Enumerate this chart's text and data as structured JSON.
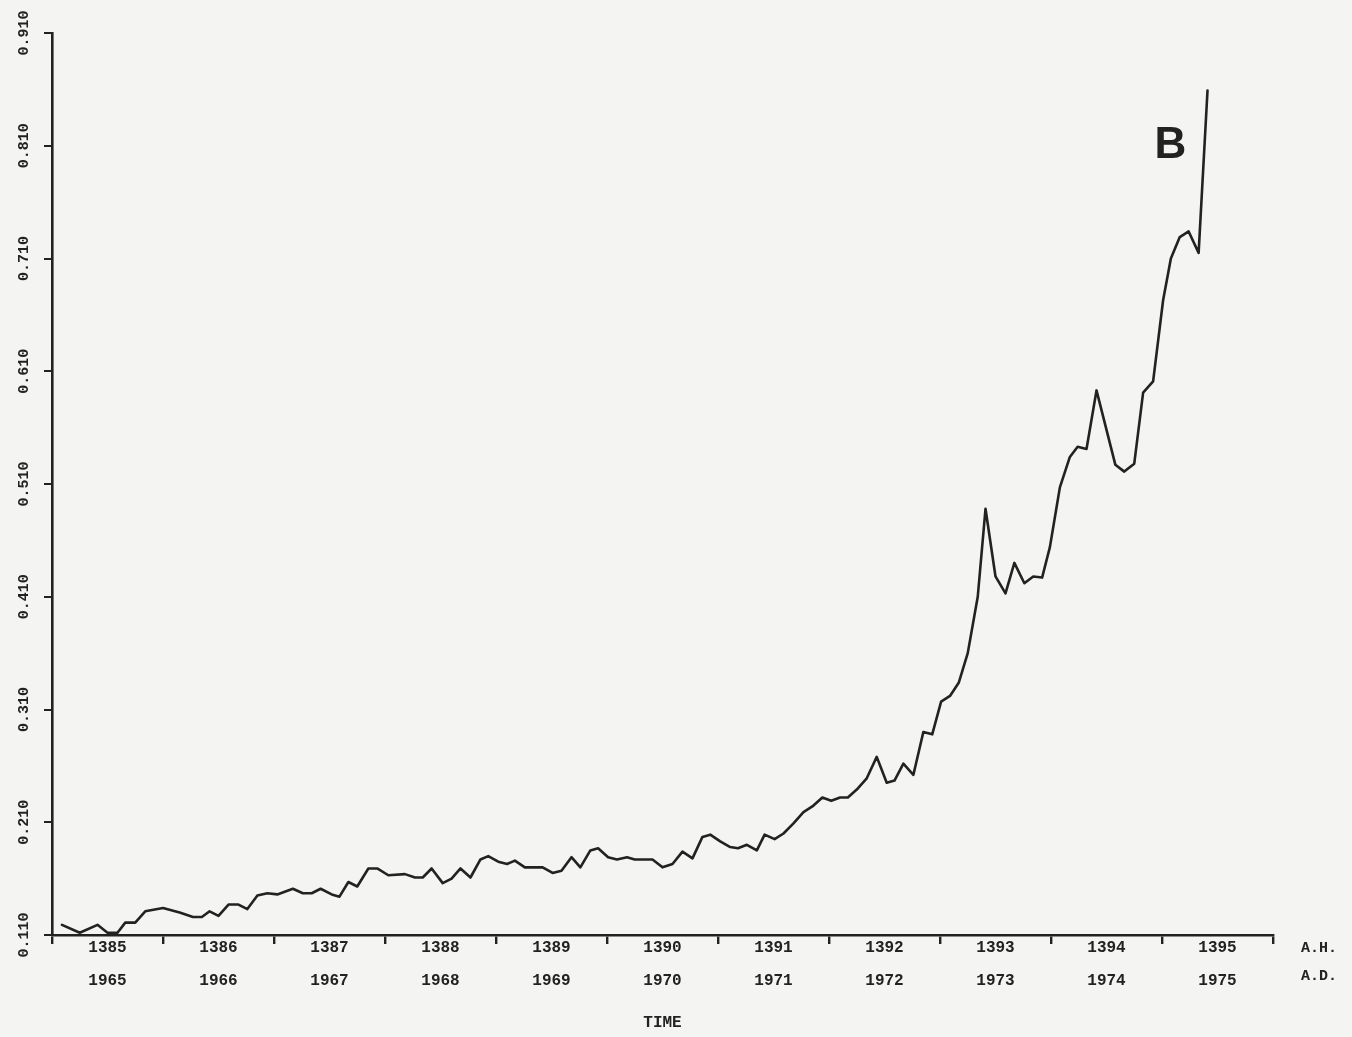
{
  "chart_data": {
    "type": "line",
    "xlabel": "TIME",
    "annotations": [
      "B",
      "A.H.",
      "A.D."
    ],
    "xlim": [
      1964.5,
      1975.5
    ],
    "ylim": [
      0.11,
      0.91
    ],
    "xticks": [
      1965,
      1966,
      1967,
      1968,
      1969,
      1970,
      1971,
      1972,
      1973,
      1974,
      1975
    ],
    "x2lim": [
      1384.5,
      1395.5
    ],
    "x2ticks": [
      {
        "value": 1384.5,
        "label": null
      },
      1385,
      {
        "value": 1385.5,
        "label": null
      },
      1386,
      {
        "value": 1386.5,
        "label": null
      },
      1387,
      {
        "value": 1387.5,
        "label": null
      },
      1388,
      {
        "value": 1388.5,
        "label": null
      },
      1389,
      {
        "value": 1389.5,
        "label": null
      },
      1390,
      {
        "value": 1390.5,
        "label": null
      },
      1391,
      {
        "value": 1391.5,
        "label": null
      },
      1392,
      {
        "value": 1392.5,
        "label": null
      },
      1393,
      {
        "value": 1393.5,
        "label": null
      },
      1394,
      {
        "value": 1394.5,
        "label": null
      },
      1395,
      {
        "value": 1395.5,
        "label": null
      }
    ],
    "yticks": [
      {
        "value": 0.11,
        "label": "0.110"
      },
      {
        "value": 0.21,
        "label": "0.210"
      },
      {
        "value": 0.31,
        "label": "0.310"
      },
      {
        "value": 0.41,
        "label": "0.410"
      },
      {
        "value": 0.51,
        "label": "0.510"
      },
      {
        "value": 0.61,
        "label": "0.610"
      },
      {
        "value": 0.71,
        "label": "0.710"
      },
      {
        "value": 0.81,
        "label": "0.810"
      },
      {
        "value": 0.91,
        "label": "0.910"
      }
    ],
    "grid": false,
    "legend": false,
    "marker": "none",
    "line_style": "solid",
    "series": [
      {
        "color": "#222222",
        "x": [
          1964.59,
          1964.75,
          1964.91,
          1965.0,
          1965.09,
          1965.16,
          1965.25,
          1965.34,
          1965.5,
          1965.65,
          1965.77,
          1965.85,
          1965.92,
          1966.0,
          1966.09,
          1966.18,
          1966.26,
          1966.35,
          1966.44,
          1966.53,
          1966.67,
          1966.76,
          1966.84,
          1966.92,
          1967.02,
          1967.09,
          1967.17,
          1967.25,
          1967.35,
          1967.43,
          1967.53,
          1967.68,
          1967.77,
          1967.84,
          1967.92,
          1968.02,
          1968.1,
          1968.18,
          1968.27,
          1968.36,
          1968.43,
          1968.52,
          1968.6,
          1968.67,
          1968.76,
          1968.92,
          1969.01,
          1969.09,
          1969.18,
          1969.26,
          1969.35,
          1969.42,
          1969.51,
          1969.59,
          1969.68,
          1969.75,
          1969.91,
          1970.0,
          1970.09,
          1970.18,
          1970.27,
          1970.36,
          1970.43,
          1970.52,
          1970.61,
          1970.68,
          1970.76,
          1970.85,
          1970.92,
          1971.01,
          1971.09,
          1971.18,
          1971.27,
          1971.35,
          1971.44,
          1971.52,
          1971.6,
          1971.67,
          1971.76,
          1971.84,
          1971.93,
          1972.02,
          1972.09,
          1972.17,
          1972.26,
          1972.35,
          1972.43,
          1972.51,
          1972.59,
          1972.67,
          1972.75,
          1972.84,
          1972.91,
          1973.0,
          1973.09,
          1973.17,
          1973.26,
          1973.34,
          1973.42,
          1973.49,
          1973.58,
          1973.67,
          1973.74,
          1973.82,
          1973.91,
          1974.08,
          1974.16,
          1974.25,
          1974.33,
          1974.42,
          1974.51,
          1974.58,
          1974.66,
          1974.74,
          1974.83,
          1974.91
        ],
        "values": [
          0.119,
          0.112,
          0.119,
          0.112,
          0.112,
          0.121,
          0.121,
          0.131,
          0.134,
          0.13,
          0.126,
          0.126,
          0.131,
          0.127,
          0.137,
          0.137,
          0.133,
          0.145,
          0.147,
          0.146,
          0.151,
          0.147,
          0.147,
          0.151,
          0.146,
          0.144,
          0.157,
          0.153,
          0.169,
          0.169,
          0.163,
          0.164,
          0.161,
          0.161,
          0.169,
          0.156,
          0.16,
          0.169,
          0.161,
          0.177,
          0.18,
          0.175,
          0.173,
          0.176,
          0.17,
          0.17,
          0.165,
          0.167,
          0.179,
          0.17,
          0.185,
          0.187,
          0.179,
          0.177,
          0.179,
          0.177,
          0.177,
          0.17,
          0.173,
          0.184,
          0.178,
          0.197,
          0.199,
          0.193,
          0.188,
          0.187,
          0.19,
          0.185,
          0.199,
          0.195,
          0.2,
          0.209,
          0.219,
          0.224,
          0.232,
          0.229,
          0.232,
          0.232,
          0.24,
          0.249,
          0.268,
          0.245,
          0.247,
          0.262,
          0.252,
          0.29,
          0.288,
          0.317,
          0.322,
          0.334,
          0.36,
          0.41,
          0.488,
          0.428,
          0.413,
          0.44,
          0.422,
          0.428,
          0.427,
          0.454,
          0.507,
          0.534,
          0.543,
          0.541,
          0.593,
          0.527,
          0.521,
          0.528,
          0.591,
          0.601,
          0.673,
          0.71,
          0.729,
          0.734,
          0.715,
          0.859
        ]
      }
    ]
  }
}
